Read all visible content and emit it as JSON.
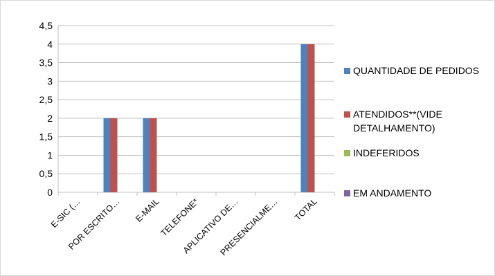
{
  "chart_data": {
    "type": "bar",
    "categories": [
      "E-SIC (…",
      "POR ESCRITO…",
      "E-MAIL",
      "TELEFONE*",
      "APLICATIVO DE…",
      "PRESENCIALME…",
      "TOTAL"
    ],
    "series": [
      {
        "name": "QUANTIDADE DE PEDIDOS",
        "values": [
          0,
          2,
          2,
          0,
          0,
          0,
          4
        ]
      },
      {
        "name": "ATENDIDOS**(VIDE DETALHAMENTO)",
        "values": [
          0,
          2,
          2,
          0,
          0,
          0,
          4
        ]
      },
      {
        "name": "INDEFERIDOS",
        "values": [
          0,
          0,
          0,
          0,
          0,
          0,
          0
        ]
      },
      {
        "name": "EM ANDAMENTO",
        "values": [
          0,
          0,
          0,
          0,
          0,
          0,
          0
        ]
      }
    ],
    "legend_lines": [
      [
        "QUANTIDADE DE PEDIDOS"
      ],
      [
        "ATENDIDOS**(VIDE",
        "DETALHAMENTO)"
      ],
      [
        "INDEFERIDOS"
      ],
      [
        "EM ANDAMENTO"
      ]
    ],
    "colors": [
      "#4f81bd",
      "#c0504d",
      "#9bbb59",
      "#8064a2"
    ],
    "ylim": [
      0,
      4.5
    ],
    "yticks": [
      "0",
      "0,5",
      "1",
      "1,5",
      "2",
      "2,5",
      "3",
      "3,5",
      "4",
      "4,5"
    ],
    "grid": true,
    "legend_position": "right",
    "title": "",
    "xlabel": "",
    "ylabel": ""
  }
}
